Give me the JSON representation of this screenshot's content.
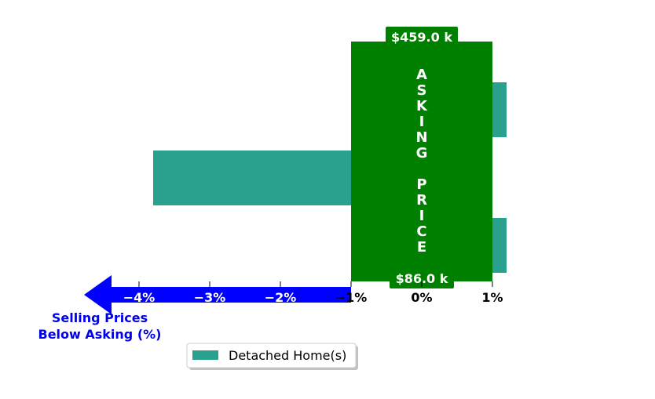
{
  "chart_data": {
    "type": "bar",
    "orientation": "horizontal",
    "categories": [
      "",
      "",
      ""
    ],
    "series": [
      {
        "name": "Detached Home(s)",
        "values": [
          1.2,
          -3.8,
          1.2
        ]
      }
    ],
    "xlim": [
      -5.0,
      2.0
    ],
    "ticks": [
      -4,
      -3,
      -2,
      -1,
      0,
      1
    ],
    "tick_labels": [
      "−4%",
      "−3%",
      "−2%",
      "−1%",
      "0%",
      "1%"
    ],
    "asking_band": {
      "from": -1,
      "to": 1,
      "label": "ASKING PRICE",
      "top_price": "$459.0 k",
      "bottom_price": "$86.0 k"
    },
    "below_asking_label": [
      "Selling Prices",
      "Below Asking (%)"
    ],
    "legend": {
      "placement": "bottom-center"
    },
    "grid": false,
    "colors": {
      "bar": "#2aa08f",
      "band": "#008000",
      "arrow": "#0000ff",
      "below_label": "#0000ee"
    }
  }
}
